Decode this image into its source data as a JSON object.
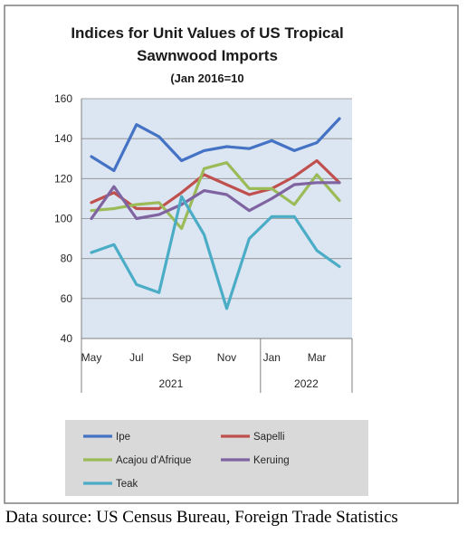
{
  "chart_data": {
    "type": "line",
    "title_line1": "Indices for Unit Values of US Tropical",
    "title_line2": "Sawnwood Imports",
    "subtitle": "(Jan 2016=10",
    "ylim": [
      40,
      160
    ],
    "yticks": [
      40,
      60,
      80,
      100,
      120,
      140,
      160
    ],
    "x": [
      "May 2021",
      "Jun 2021",
      "Jul 2021",
      "Aug 2021",
      "Sep 2021",
      "Oct 2021",
      "Nov 2021",
      "Dec 2021",
      "Jan 2022",
      "Feb 2022",
      "Mar 2022",
      "Apr 2022"
    ],
    "x_tick_labels": [
      "May",
      "Jul",
      "Sep",
      "Nov",
      "Jan",
      "Mar"
    ],
    "years": [
      "2021",
      "2022"
    ],
    "grid": "horizontal",
    "legend_position": "bottom",
    "series": [
      {
        "name": "Ipe",
        "color": "#4472c4",
        "values": [
          131,
          124,
          147,
          141,
          129,
          134,
          136,
          135,
          139,
          134,
          138,
          150
        ]
      },
      {
        "name": "Sapelli",
        "color": "#c0504d",
        "values": [
          108,
          113,
          105,
          105,
          113,
          122,
          117,
          112,
          115,
          121,
          129,
          118
        ]
      },
      {
        "name": "Acajou d'Afrique",
        "color": "#9bbb59",
        "values": [
          104,
          105,
          107,
          108,
          95,
          125,
          128,
          115,
          115,
          107,
          122,
          109
        ]
      },
      {
        "name": "Keruing",
        "color": "#8064a2",
        "values": [
          100,
          116,
          100,
          102,
          107,
          114,
          112,
          104,
          110,
          117,
          118,
          118
        ]
      },
      {
        "name": "Teak",
        "color": "#4bacc6",
        "values": [
          83,
          87,
          67,
          63,
          111,
          92,
          55,
          90,
          101,
          101,
          84,
          76
        ]
      }
    ]
  },
  "footer": {
    "source": "Data source: US Census Bureau, Foreign Trade Statistics"
  }
}
